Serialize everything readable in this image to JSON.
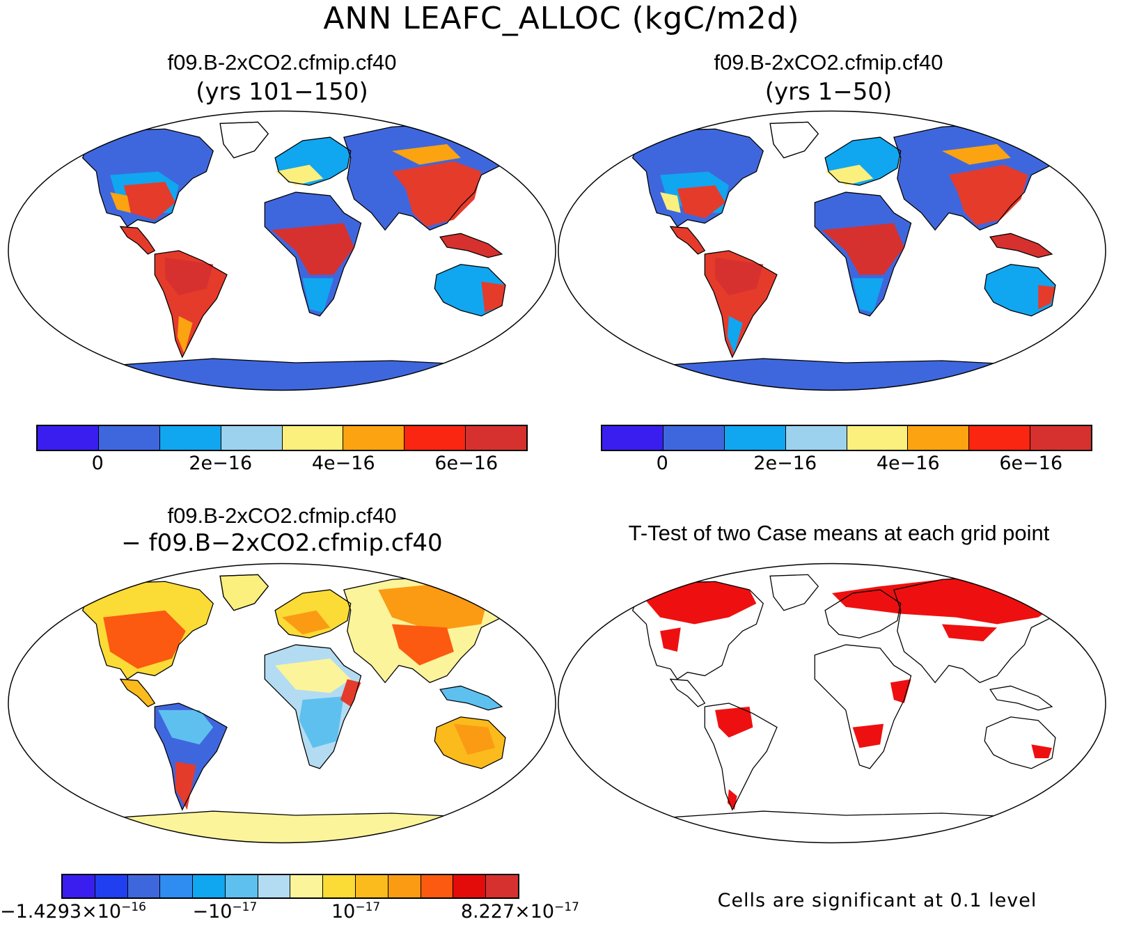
{
  "title": "ANN LEAFC_ALLOC (kgC/m2d)",
  "panels": {
    "top_left": {
      "title": "f09.B-2xCO2.cfmip.cf40",
      "subtitle": "(yrs 101−150)"
    },
    "top_right": {
      "title": "f09.B-2xCO2.cfmip.cf40",
      "subtitle": "(yrs 1−50)"
    },
    "bottom_left": {
      "title": "f09.B-2xCO2.cfmip.cf40",
      "subtitle": "− f09.B−2xCO2.cfmip.cf40"
    },
    "bottom_right": {
      "title": "T-Test of two Case means at each grid point",
      "note": "Cells are significant at 0.1 level"
    }
  },
  "colorbar_top": {
    "colors": [
      "#3a1ef0",
      "#3f67dd",
      "#11a6f0",
      "#9dd2ee",
      "#fbef7d",
      "#fba310",
      "#fb2611",
      "#d6312e"
    ],
    "tick_labels": [
      "0",
      "2e−16",
      "4e−16",
      "6e−16"
    ]
  },
  "colorbar_bottom": {
    "colors": [
      "#3a1ef0",
      "#1f3ff0",
      "#3f67dd",
      "#2f8cf0",
      "#11a6f0",
      "#5ec0ef",
      "#b3dcf2",
      "#fbf49b",
      "#fbdb36",
      "#fbbb1d",
      "#fb9b14",
      "#fb5a10",
      "#e40b0b",
      "#d6312e"
    ],
    "tick_labels": {
      "t1_mant": "−1.4293×10",
      "t1_exp": "−16",
      "t2_mant": "−10",
      "t2_exp": "−17",
      "t3_mant": "10",
      "t3_exp": "−17",
      "t4_mant": "8.227×10",
      "t4_exp": "−17"
    }
  },
  "map_colors": {
    "land_blue": "#3f67dd",
    "land_red": "#e53b2b",
    "land_orange": "#fba310",
    "land_yellow": "#fbef7d",
    "land_lightblue": "#9dd2ee",
    "sig_red": "#ee1010"
  }
}
